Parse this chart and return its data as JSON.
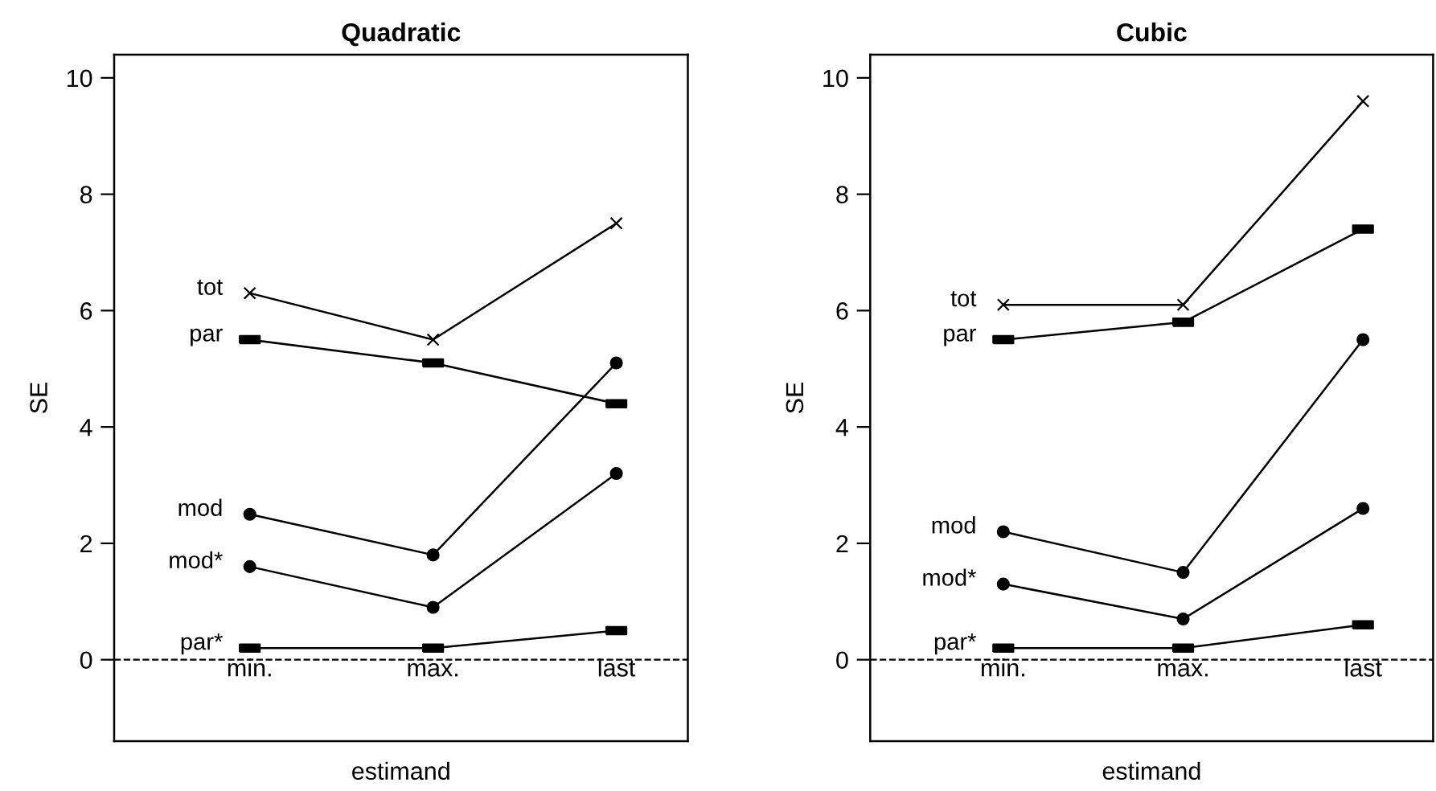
{
  "chart_data": [
    {
      "type": "line",
      "title": "Quadratic",
      "xlabel": "estimand",
      "ylabel": "SE",
      "categories": [
        "min.",
        "max.",
        "last"
      ],
      "ylim": [
        -1.4,
        10.4
      ],
      "yticks": [
        0,
        2,
        4,
        6,
        8,
        10
      ],
      "grid": false,
      "legend": false,
      "ref_lines": [
        {
          "axis": "y",
          "value": 0,
          "line_style": "dashed",
          "color": "#000000"
        }
      ],
      "series": [
        {
          "name": "tot",
          "color": "#000000",
          "marker": "cross",
          "values": [
            6.3,
            5.5,
            7.5
          ]
        },
        {
          "name": "par",
          "color": "#000000",
          "marker": "square",
          "values": [
            5.5,
            5.1,
            4.4
          ]
        },
        {
          "name": "mod",
          "color": "#000000",
          "marker": "circle",
          "values": [
            2.5,
            1.8,
            5.1
          ]
        },
        {
          "name": "mod*",
          "color": "#000000",
          "marker": "circle",
          "values": [
            1.6,
            0.9,
            3.2
          ]
        },
        {
          "name": "par*",
          "color": "#000000",
          "marker": "square",
          "values": [
            0.2,
            0.2,
            0.5
          ]
        }
      ]
    },
    {
      "type": "line",
      "title": "Cubic",
      "xlabel": "estimand",
      "ylabel": "SE",
      "categories": [
        "min.",
        "max.",
        "last"
      ],
      "ylim": [
        -1.4,
        10.4
      ],
      "yticks": [
        0,
        2,
        4,
        6,
        8,
        10
      ],
      "grid": false,
      "legend": false,
      "ref_lines": [
        {
          "axis": "y",
          "value": 0,
          "line_style": "dashed",
          "color": "#000000"
        }
      ],
      "series": [
        {
          "name": "tot",
          "color": "#000000",
          "marker": "cross",
          "values": [
            6.1,
            6.1,
            9.6
          ]
        },
        {
          "name": "par",
          "color": "#000000",
          "marker": "square",
          "values": [
            5.5,
            5.8,
            7.4
          ]
        },
        {
          "name": "mod",
          "color": "#000000",
          "marker": "circle",
          "values": [
            2.2,
            1.5,
            5.5
          ]
        },
        {
          "name": "mod*",
          "color": "#000000",
          "marker": "circle",
          "values": [
            1.3,
            0.7,
            2.6
          ]
        },
        {
          "name": "par*",
          "color": "#000000",
          "marker": "square",
          "values": [
            0.2,
            0.2,
            0.6
          ]
        }
      ]
    }
  ]
}
